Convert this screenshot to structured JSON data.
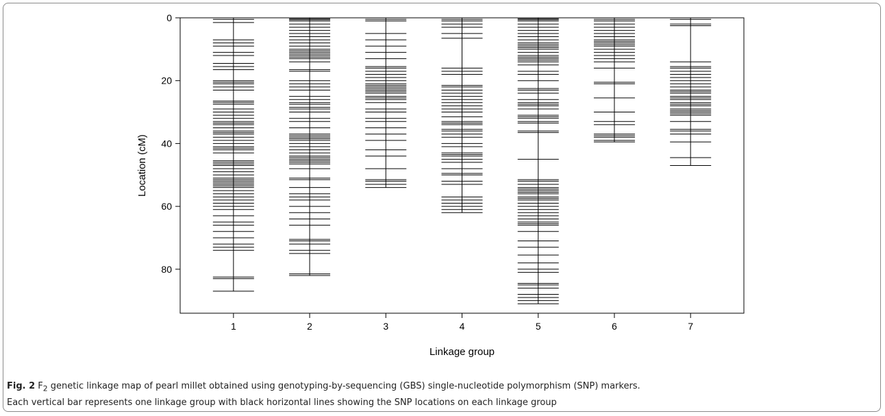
{
  "caption": {
    "label": "Fig. 2",
    "text_prefix": "F",
    "text_sub": "2",
    "line1": " genetic linkage map of pearl millet obtained using genotyping-by-sequencing (GBS) single-nucleotide polymorphism (SNP) markers.",
    "line2": "Each vertical bar represents one linkage group with black horizontal lines showing the SNP locations on each linkage group"
  },
  "chart_data": {
    "type": "scatter",
    "title": "",
    "xlabel": "Linkage group",
    "ylabel": "Location (cM)",
    "y_inverted": true,
    "ylim": [
      0,
      94
    ],
    "xlim": [
      0.3,
      7.7
    ],
    "y_ticks": [
      0,
      20,
      40,
      60,
      80
    ],
    "x_ticks": [
      1,
      2,
      3,
      4,
      5,
      6,
      7
    ],
    "x_tick_labels": [
      "1",
      "2",
      "3",
      "4",
      "5",
      "6",
      "7"
    ],
    "groups": [
      {
        "group": 1,
        "length": 87,
        "markers": [
          0,
          0.5,
          1.5,
          7,
          8,
          9,
          11,
          12,
          14.5,
          15.5,
          16.5,
          20,
          20.5,
          21,
          22,
          23,
          26.5,
          27,
          27.5,
          29,
          30,
          31,
          32,
          33,
          33.5,
          34,
          35,
          36,
          36.5,
          37,
          38,
          39,
          40,
          41,
          41.5,
          42,
          43,
          45.5,
          46,
          46.5,
          47,
          48,
          49,
          50,
          51,
          51.5,
          52,
          52.5,
          53,
          53.5,
          54,
          55,
          56,
          57,
          58,
          59,
          60,
          61,
          63,
          65,
          66,
          68,
          70,
          72,
          73,
          74,
          82.5,
          83,
          87
        ]
      },
      {
        "group": 2,
        "length": 82,
        "markers": [
          0,
          0.3,
          0.6,
          1,
          2,
          3,
          4,
          5,
          6,
          7,
          8,
          9,
          10,
          10.5,
          11,
          11.5,
          12,
          12.5,
          13,
          14,
          16.5,
          17,
          20,
          21,
          22,
          23,
          25,
          26,
          27,
          27.5,
          28.5,
          29,
          30,
          32,
          33,
          35,
          37,
          37.5,
          38,
          38.5,
          39,
          40,
          41,
          42,
          43,
          44,
          44.5,
          45,
          45.5,
          46,
          46.5,
          48,
          51,
          51.5,
          54,
          56,
          57,
          58,
          60,
          62,
          64,
          66,
          70.5,
          71,
          72,
          74,
          75,
          81.5,
          82
        ]
      },
      {
        "group": 3,
        "length": 54,
        "markers": [
          0,
          0.5,
          1,
          5,
          7,
          9,
          11,
          13,
          15.5,
          16,
          17,
          18,
          19,
          20,
          21,
          21.5,
          22,
          22.5,
          23,
          23.5,
          24,
          25,
          25.5,
          26,
          27,
          29,
          30,
          32,
          33,
          35,
          37,
          39,
          42,
          44,
          48,
          51.5,
          52,
          53,
          54
        ]
      },
      {
        "group": 4,
        "length": 62,
        "markers": [
          0,
          0.5,
          1,
          2,
          3,
          5,
          6.5,
          16,
          17,
          18,
          21.5,
          22,
          23,
          24,
          25,
          26,
          27,
          28,
          29,
          30,
          31.5,
          33,
          33.5,
          34,
          35.5,
          36,
          37,
          38,
          40,
          41,
          43,
          43.5,
          44,
          45,
          46,
          48,
          49.5,
          50,
          52,
          53,
          57,
          58,
          59,
          60,
          61,
          62
        ]
      },
      {
        "group": 5,
        "length": 91,
        "markers": [
          0,
          0.3,
          0.6,
          1,
          2,
          3,
          4,
          5,
          6,
          7,
          8,
          8.5,
          9,
          9.5,
          10,
          11,
          12,
          12.5,
          13,
          13.5,
          14,
          15,
          17,
          18,
          20,
          22.5,
          23,
          24,
          26,
          27,
          27.5,
          28,
          29,
          31,
          31.5,
          32,
          33,
          33.5,
          36,
          36.5,
          45,
          51.5,
          52,
          53,
          54,
          54.5,
          55,
          55.5,
          56,
          57,
          57.5,
          58,
          59,
          60,
          61,
          62,
          63,
          64,
          65,
          65.5,
          66,
          68,
          71,
          73,
          75.5,
          78,
          80,
          81,
          84.5,
          85,
          86,
          88,
          89,
          90,
          91
        ]
      },
      {
        "group": 6,
        "length": 39.5,
        "markers": [
          0,
          0.5,
          1,
          2,
          3,
          4,
          5,
          6,
          7,
          7.5,
          8,
          8.5,
          9,
          10,
          11,
          12,
          13,
          14,
          16,
          20.5,
          21,
          25.5,
          30,
          33,
          34,
          37,
          37.5,
          38,
          39,
          39.5
        ]
      },
      {
        "group": 7,
        "length": 47,
        "markers": [
          0,
          0.5,
          2,
          2.5,
          14,
          15.5,
          16,
          17,
          18,
          19,
          20,
          21,
          22,
          23,
          23.5,
          24,
          25,
          25.5,
          26,
          27,
          27.5,
          28,
          29,
          29.5,
          30,
          30.5,
          31,
          33,
          35.5,
          36,
          37,
          39.5,
          44.5,
          47
        ]
      }
    ]
  }
}
